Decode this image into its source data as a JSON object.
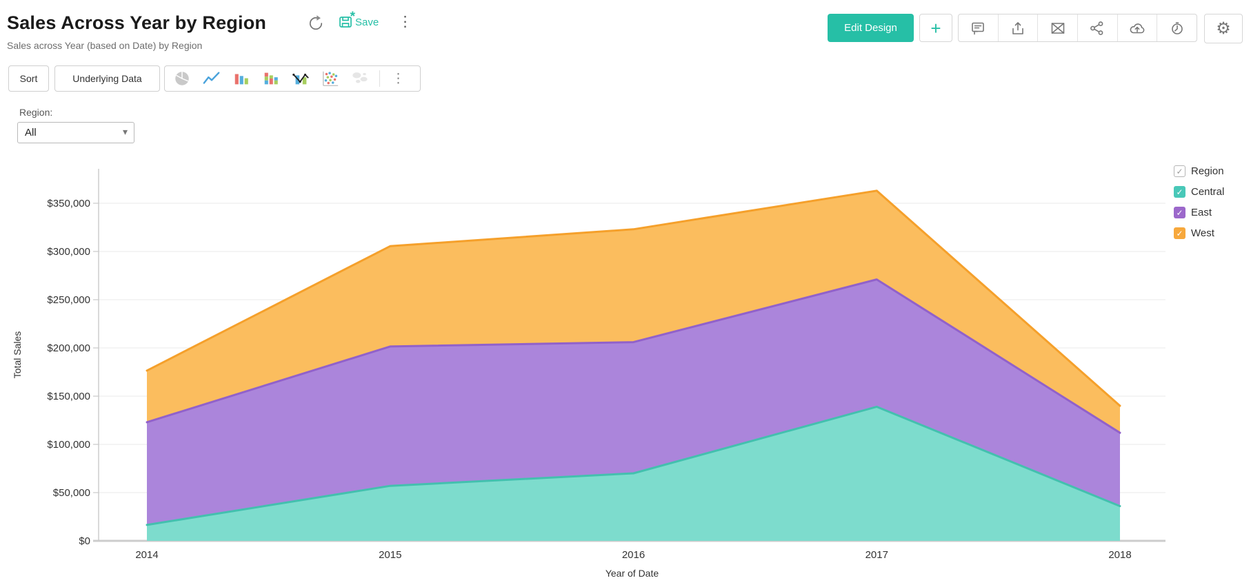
{
  "colors": {
    "accent": "#26bfa6"
  },
  "icons": {
    "check": "✓",
    "kebab": "⋮",
    "gear": "⚙",
    "caret": "▾",
    "plus": "+"
  },
  "header": {
    "title": "Sales Across Year by Region",
    "subtitle": "Sales across Year (based on Date) by Region",
    "save_label": "Save",
    "save_unsaved_marker": "*",
    "edit_design_label": "Edit Design"
  },
  "toolbar": {
    "sort_label": "Sort",
    "underlying_label": "Underlying Data",
    "chart_types": [
      "pie",
      "line",
      "bar",
      "stacked-bar",
      "combo",
      "scatter",
      "map"
    ]
  },
  "filter": {
    "label": "Region:",
    "value": "All"
  },
  "legend": {
    "title": "Region",
    "items": [
      {
        "label": "Central",
        "color": "#49c8b8"
      },
      {
        "label": "East",
        "color": "#9c68cb"
      },
      {
        "label": "West",
        "color": "#f7a83c"
      }
    ]
  },
  "chart_data": {
    "type": "area",
    "stacked": true,
    "title": "Sales Across Year by Region",
    "xlabel": "Year of Date",
    "ylabel": "Total Sales",
    "categories": [
      "2014",
      "2015",
      "2016",
      "2017",
      "2018"
    ],
    "series": [
      {
        "name": "Central",
        "values": [
          16500,
          57000,
          70000,
          139000,
          36000
        ],
        "fill": "#7ddccd",
        "stroke": "#43c0ae"
      },
      {
        "name": "East",
        "values": [
          106500,
          144500,
          136000,
          132000,
          76000
        ],
        "fill": "#ab85db",
        "stroke": "#9161ca"
      },
      {
        "name": "West",
        "values": [
          53500,
          104000,
          117000,
          92000,
          28000
        ],
        "fill": "#fbbd5e",
        "stroke": "#f5a02b"
      }
    ],
    "yticks": {
      "values": [
        0,
        50000,
        100000,
        150000,
        200000,
        250000,
        300000,
        350000
      ],
      "labels": [
        "$0",
        "$50,000",
        "$100,000",
        "$150,000",
        "$200,000",
        "$250,000",
        "$300,000",
        "$350,000"
      ]
    },
    "ylim": [
      0,
      385000
    ],
    "grid": true,
    "legend_position": "right"
  }
}
